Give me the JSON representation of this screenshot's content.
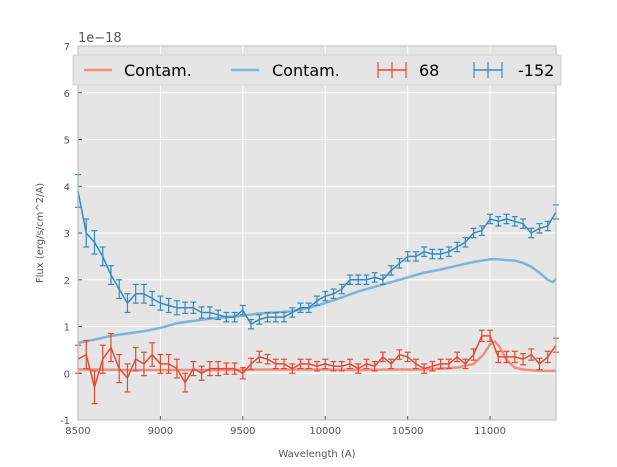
{
  "chart_data": {
    "type": "line",
    "xlabel": "Wavelength (A)",
    "ylabel": "Flux (erg/s/cm^2/A)",
    "y_offset_label": "1e−18",
    "xlim": [
      8500,
      11400
    ],
    "ylim": [
      -1,
      7
    ],
    "x_ticks": [
      8500,
      9000,
      9500,
      10000,
      10500,
      11000
    ],
    "y_ticks": [
      -1,
      0,
      1,
      2,
      3,
      4,
      5,
      6,
      7
    ],
    "grid": true,
    "legend_position": "top",
    "legend": [
      "Contam.",
      "Contam.",
      "68",
      "-152"
    ],
    "series": [
      {
        "name": "Contam.",
        "kind": "line",
        "color": "#f08f7f",
        "x": [
          8500,
          8600,
          8800,
          9000,
          9200,
          9400,
          9600,
          9800,
          10000,
          10200,
          10400,
          10600,
          10800,
          10900,
          10960,
          11000,
          11030,
          11060,
          11100,
          11150,
          11200,
          11300,
          11400
        ],
        "y": [
          0.08,
          0.08,
          0.07,
          0.07,
          0.07,
          0.07,
          0.08,
          0.08,
          0.08,
          0.07,
          0.08,
          0.08,
          0.12,
          0.2,
          0.4,
          0.62,
          0.68,
          0.55,
          0.28,
          0.12,
          0.08,
          0.05,
          0.05
        ]
      },
      {
        "name": "Contam.",
        "kind": "line",
        "color": "#7db4d8",
        "x": [
          8500,
          8600,
          8700,
          8800,
          8900,
          9000,
          9100,
          9200,
          9300,
          9400,
          9500,
          9600,
          9700,
          9800,
          9900,
          10000,
          10100,
          10200,
          10300,
          10400,
          10500,
          10600,
          10700,
          10800,
          10900,
          11000,
          11050,
          11100,
          11150,
          11200,
          11250,
          11300,
          11350,
          11380,
          11400
        ],
        "y": [
          0.65,
          0.72,
          0.8,
          0.85,
          0.9,
          0.97,
          1.07,
          1.12,
          1.17,
          1.2,
          1.23,
          1.28,
          1.3,
          1.33,
          1.4,
          1.5,
          1.62,
          1.75,
          1.85,
          1.95,
          2.05,
          2.15,
          2.22,
          2.3,
          2.38,
          2.44,
          2.44,
          2.42,
          2.41,
          2.36,
          2.28,
          2.15,
          2.0,
          1.95,
          2.02
        ]
      },
      {
        "name": "68",
        "kind": "errorbar",
        "color": "#e24a33",
        "x": [
          8500,
          8550,
          8600,
          8650,
          8700,
          8750,
          8800,
          8850,
          8900,
          8950,
          9000,
          9050,
          9100,
          9150,
          9200,
          9250,
          9300,
          9350,
          9400,
          9450,
          9500,
          9550,
          9600,
          9650,
          9700,
          9750,
          9800,
          9850,
          9900,
          9950,
          10000,
          10050,
          10100,
          10150,
          10200,
          10250,
          10300,
          10350,
          10400,
          10450,
          10500,
          10550,
          10600,
          10650,
          10700,
          10750,
          10800,
          10850,
          10900,
          10950,
          11000,
          11050,
          11100,
          11150,
          11200,
          11250,
          11300,
          11350,
          11400
        ],
        "y": [
          0.3,
          0.4,
          -0.3,
          0.3,
          0.55,
          0.1,
          -0.1,
          0.3,
          0.2,
          0.4,
          0.2,
          0.2,
          0.1,
          -0.2,
          0.1,
          0.0,
          0.1,
          0.1,
          0.1,
          0.1,
          0.0,
          0.2,
          0.35,
          0.3,
          0.2,
          0.2,
          0.1,
          0.2,
          0.2,
          0.15,
          0.2,
          0.15,
          0.15,
          0.2,
          0.1,
          0.2,
          0.15,
          0.35,
          0.2,
          0.4,
          0.35,
          0.2,
          0.1,
          0.15,
          0.2,
          0.2,
          0.35,
          0.2,
          0.4,
          0.8,
          0.8,
          0.35,
          0.35,
          0.35,
          0.3,
          0.4,
          0.2,
          0.35,
          0.6
        ],
        "err": [
          0.3,
          0.3,
          0.35,
          0.3,
          0.3,
          0.3,
          0.3,
          0.25,
          0.25,
          0.25,
          0.2,
          0.2,
          0.2,
          0.2,
          0.15,
          0.15,
          0.15,
          0.15,
          0.12,
          0.12,
          0.12,
          0.12,
          0.12,
          0.1,
          0.1,
          0.1,
          0.1,
          0.1,
          0.1,
          0.1,
          0.1,
          0.1,
          0.1,
          0.1,
          0.1,
          0.1,
          0.1,
          0.1,
          0.1,
          0.1,
          0.1,
          0.1,
          0.1,
          0.1,
          0.1,
          0.1,
          0.1,
          0.1,
          0.12,
          0.12,
          0.12,
          0.12,
          0.12,
          0.12,
          0.12,
          0.12,
          0.12,
          0.12,
          0.15
        ]
      },
      {
        "name": "-152",
        "kind": "errorbar",
        "color": "#348abd",
        "x": [
          8500,
          8550,
          8600,
          8650,
          8700,
          8750,
          8800,
          8850,
          8900,
          8950,
          9000,
          9050,
          9100,
          9150,
          9200,
          9250,
          9300,
          9350,
          9400,
          9450,
          9500,
          9550,
          9600,
          9650,
          9700,
          9750,
          9800,
          9850,
          9900,
          9950,
          10000,
          10050,
          10100,
          10150,
          10200,
          10250,
          10300,
          10350,
          10400,
          10450,
          10500,
          10550,
          10600,
          10650,
          10700,
          10750,
          10800,
          10850,
          10900,
          10950,
          11000,
          11050,
          11100,
          11150,
          11200,
          11250,
          11300,
          11350,
          11400
        ],
        "y": [
          3.9,
          3.0,
          2.8,
          2.5,
          2.1,
          1.8,
          1.5,
          1.7,
          1.7,
          1.6,
          1.5,
          1.45,
          1.4,
          1.4,
          1.4,
          1.3,
          1.3,
          1.25,
          1.2,
          1.2,
          1.35,
          1.05,
          1.15,
          1.2,
          1.2,
          1.2,
          1.3,
          1.4,
          1.4,
          1.55,
          1.65,
          1.7,
          1.8,
          2.0,
          2.0,
          2.0,
          2.05,
          2.0,
          2.2,
          2.35,
          2.5,
          2.5,
          2.6,
          2.55,
          2.55,
          2.6,
          2.7,
          2.8,
          3.0,
          3.05,
          3.3,
          3.25,
          3.3,
          3.25,
          3.2,
          3.0,
          3.1,
          3.15,
          3.45
        ],
        "err": [
          0.35,
          0.3,
          0.25,
          0.2,
          0.2,
          0.2,
          0.2,
          0.2,
          0.2,
          0.15,
          0.15,
          0.15,
          0.15,
          0.12,
          0.12,
          0.12,
          0.12,
          0.1,
          0.1,
          0.1,
          0.1,
          0.1,
          0.1,
          0.1,
          0.1,
          0.1,
          0.1,
          0.1,
          0.1,
          0.1,
          0.1,
          0.1,
          0.1,
          0.1,
          0.1,
          0.1,
          0.1,
          0.1,
          0.1,
          0.1,
          0.1,
          0.1,
          0.1,
          0.1,
          0.1,
          0.1,
          0.1,
          0.1,
          0.1,
          0.1,
          0.1,
          0.1,
          0.1,
          0.1,
          0.1,
          0.1,
          0.1,
          0.1,
          0.15
        ]
      }
    ]
  }
}
